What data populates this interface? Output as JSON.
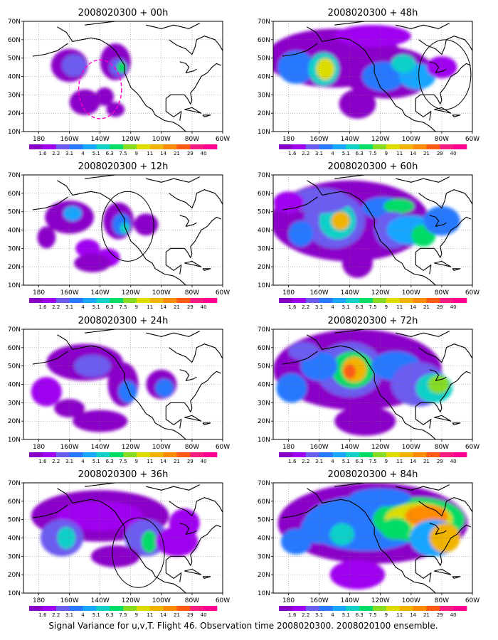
{
  "caption": "Signal Variance for u,v,T. Flight 46. Observation time 2008020300. 2008020100 ensemble.",
  "lon_labels": [
    "180",
    "160W",
    "140W",
    "120W",
    "100W",
    "80W",
    "60W"
  ],
  "lat_labels": [
    "10N",
    "20N",
    "30N",
    "40N",
    "50N",
    "60N",
    "70N"
  ],
  "colorbar_labels": [
    "1.6",
    "2.2",
    "3.1",
    "4",
    "5.1",
    "6.3",
    "7.5",
    "9",
    "11",
    "14",
    "21",
    "29",
    "40"
  ],
  "colorbar_colors": [
    "#8a00c8",
    "#a000f0",
    "#6c5cf0",
    "#2878ff",
    "#18a6ff",
    "#10d0c8",
    "#00dc66",
    "#86dc22",
    "#dcdc00",
    "#f0b400",
    "#ff8c00",
    "#ff5a14",
    "#f51d82",
    "#ff0090"
  ],
  "panels": [
    {
      "title": "2008020300 + 00h",
      "lead": "00h",
      "circle": "magenta-dashed"
    },
    {
      "title": "2008020300 + 48h",
      "lead": "48h",
      "circle": "black"
    },
    {
      "title": "2008020300 + 12h",
      "lead": "12h",
      "circle": "black"
    },
    {
      "title": "2008020300 + 60h",
      "lead": "60h",
      "circle": "none"
    },
    {
      "title": "2008020300 + 24h",
      "lead": "24h",
      "circle": "none"
    },
    {
      "title": "2008020300 + 72h",
      "lead": "72h",
      "circle": "none"
    },
    {
      "title": "2008020300 + 36h",
      "lead": "36h",
      "circle": "black"
    },
    {
      "title": "2008020300 + 84h",
      "lead": "84h",
      "circle": "none"
    }
  ]
}
